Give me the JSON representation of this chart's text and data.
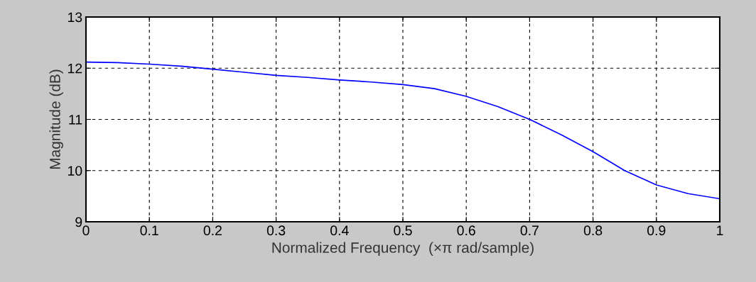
{
  "chart_data": {
    "type": "line",
    "xlabel": "Normalized Frequency  (×π rad/sample)",
    "ylabel": "Magnitude (dB)",
    "x": [
      0,
      0.05,
      0.1,
      0.15,
      0.2,
      0.25,
      0.3,
      0.35,
      0.4,
      0.45,
      0.5,
      0.55,
      0.6,
      0.65,
      0.7,
      0.75,
      0.8,
      0.85,
      0.9,
      0.95,
      1.0
    ],
    "series": [
      {
        "color": "#0000ff",
        "values": [
          12.12,
          12.11,
          12.08,
          12.04,
          11.98,
          11.92,
          11.86,
          11.82,
          11.77,
          11.73,
          11.68,
          11.6,
          11.45,
          11.25,
          11.0,
          10.7,
          10.37,
          10.0,
          9.72,
          9.55,
          9.45
        ]
      }
    ],
    "xlim": [
      0,
      1
    ],
    "ylim": [
      9,
      13
    ],
    "xticks": [
      0,
      0.1,
      0.2,
      0.3,
      0.4,
      0.5,
      0.6,
      0.7,
      0.8,
      0.9,
      1
    ],
    "yticks": [
      9,
      10,
      11,
      12,
      13
    ],
    "grid": true,
    "line_style": "solid",
    "marker": "none"
  }
}
